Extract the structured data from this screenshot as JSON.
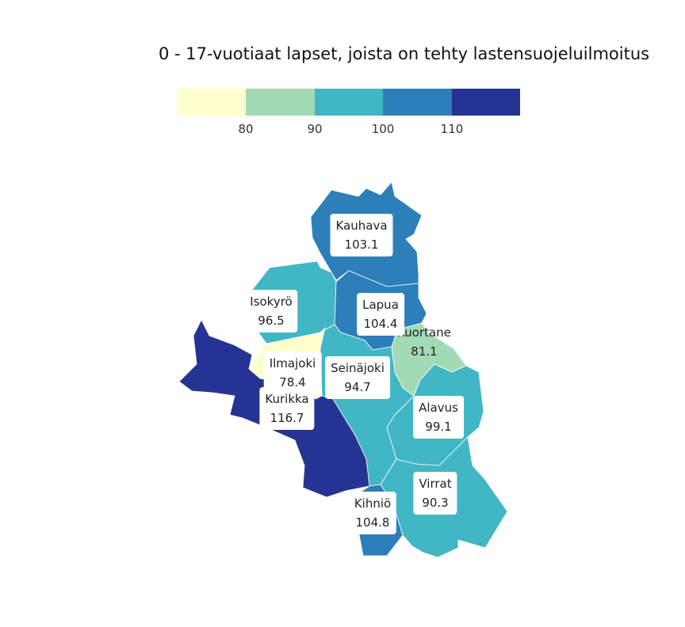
{
  "title": "0 - 17-vuotiaat lapset, joista on tehty lastensuojeluilmoitus",
  "legend": {
    "colors": [
      "#ffffcc",
      "#a1dab4",
      "#41b6c4",
      "#2c7fb8",
      "#253494"
    ],
    "ticks": [
      "80",
      "90",
      "100",
      "110"
    ]
  },
  "municipalities": [
    {
      "name": "Kauhava",
      "value": "103.1",
      "color": "#2c7fb8"
    },
    {
      "name": "Isokyrö",
      "value": "96.5",
      "color": "#41b6c4"
    },
    {
      "name": "Lapua",
      "value": "104.4",
      "color": "#2c7fb8"
    },
    {
      "name": "Kuortane",
      "value": "81.1",
      "color": "#a1dab4"
    },
    {
      "name": "Ilmajoki",
      "value": "78.4",
      "color": "#ffffcc"
    },
    {
      "name": "Seinäjoki",
      "value": "94.7",
      "color": "#41b6c4"
    },
    {
      "name": "Kurikka",
      "value": "116.7",
      "color": "#253494"
    },
    {
      "name": "Alavus",
      "value": "99.1",
      "color": "#41b6c4"
    },
    {
      "name": "Virrat",
      "value": "90.3",
      "color": "#41b6c4"
    },
    {
      "name": "Kihniö",
      "value": "104.8",
      "color": "#2c7fb8"
    }
  ]
}
